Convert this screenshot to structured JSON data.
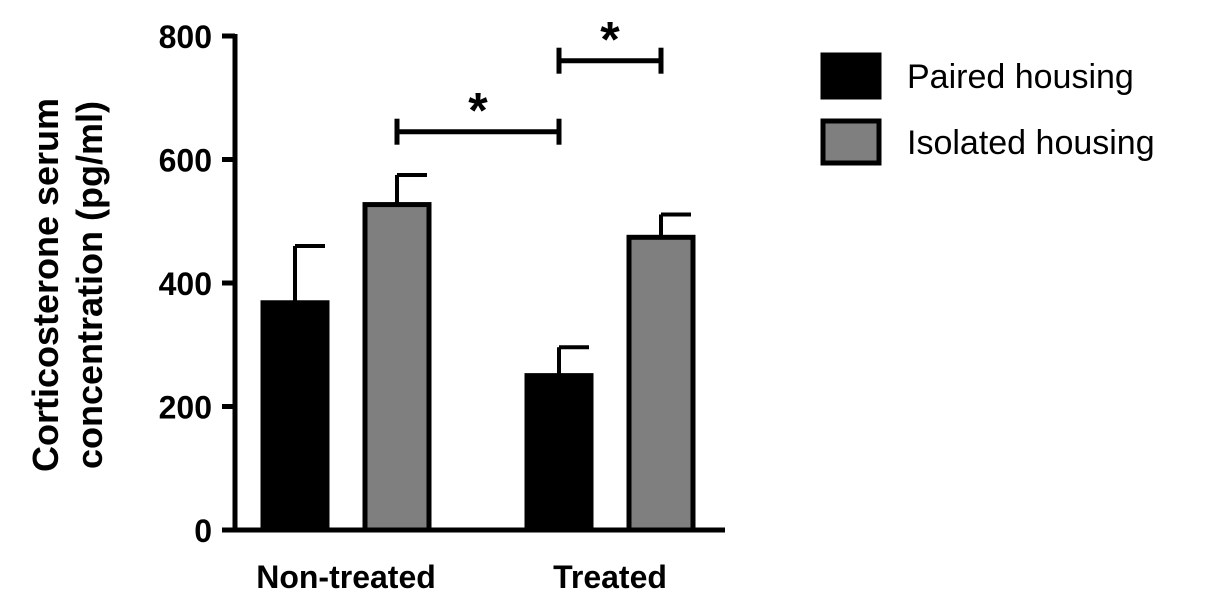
{
  "chart_data": {
    "type": "bar",
    "ylabel_line1": "Corticosterone serum",
    "ylabel_line2": "concentration (pg/ml)",
    "xlabel": "",
    "categories": [
      "Non-treated",
      "Treated"
    ],
    "ylim": [
      0,
      800
    ],
    "yticks": [
      0,
      200,
      400,
      600,
      800
    ],
    "series": [
      {
        "name": "Paired housing",
        "color": "#000000",
        "values": [
          368,
          250
        ],
        "errors": [
          92,
          46
        ]
      },
      {
        "name": "Isolated housing",
        "color": "#7f7f7f",
        "values": [
          527,
          474
        ],
        "errors": [
          48,
          37
        ]
      }
    ],
    "significance": [
      {
        "label": "*",
        "from": {
          "category": 0,
          "series": 1
        },
        "to": {
          "category": 1,
          "series": 0
        },
        "level": 645
      },
      {
        "label": "*",
        "from": {
          "category": 1,
          "series": 0
        },
        "to": {
          "category": 1,
          "series": 1
        },
        "level": 760
      }
    ],
    "legend_position": "top-right",
    "grid": false
  }
}
